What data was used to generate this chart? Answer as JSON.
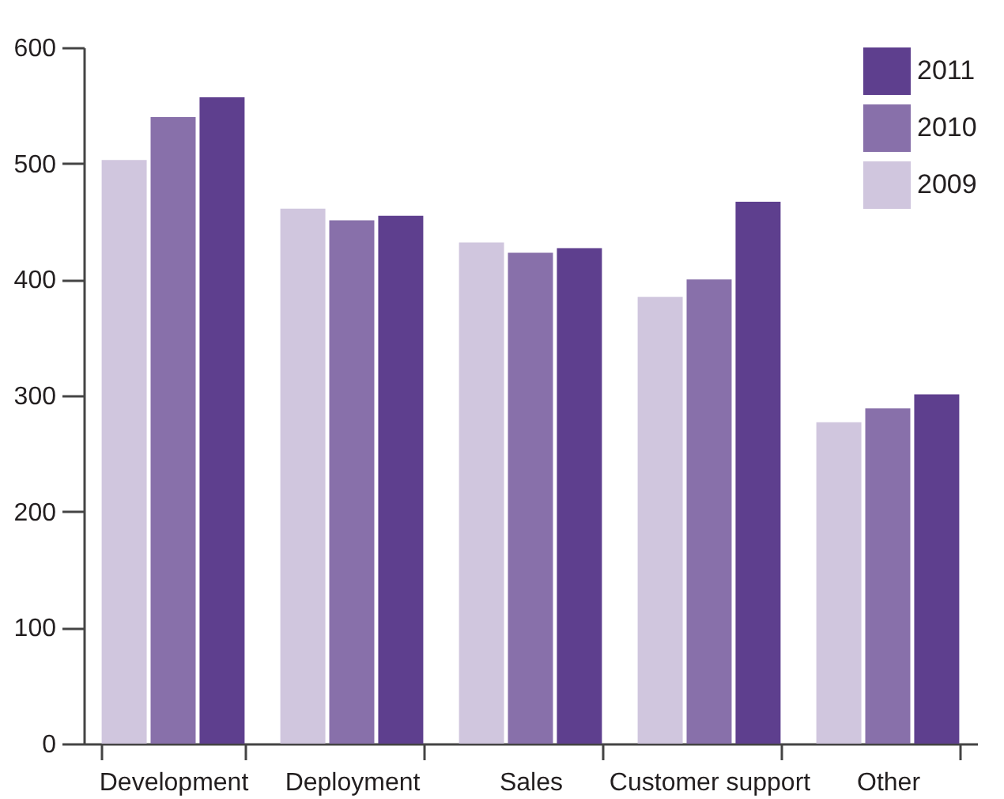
{
  "chart_data": {
    "type": "bar",
    "categories": [
      "Development",
      "Deployment",
      "Sales",
      "Customer support",
      "Other"
    ],
    "series": [
      {
        "name": "2009",
        "color": "#d0c6de",
        "values": [
          503,
          461,
          432,
          385,
          277
        ]
      },
      {
        "name": "2010",
        "color": "#8870aa",
        "values": [
          540,
          451,
          423,
          400,
          289
        ]
      },
      {
        "name": "2011",
        "color": "#5e3f8e",
        "values": [
          557,
          455,
          427,
          467,
          301
        ]
      }
    ],
    "ylim": [
      0,
      600
    ],
    "yticks": [
      0,
      100,
      200,
      300,
      400,
      500,
      600
    ],
    "grid": false,
    "legend": "top right"
  }
}
